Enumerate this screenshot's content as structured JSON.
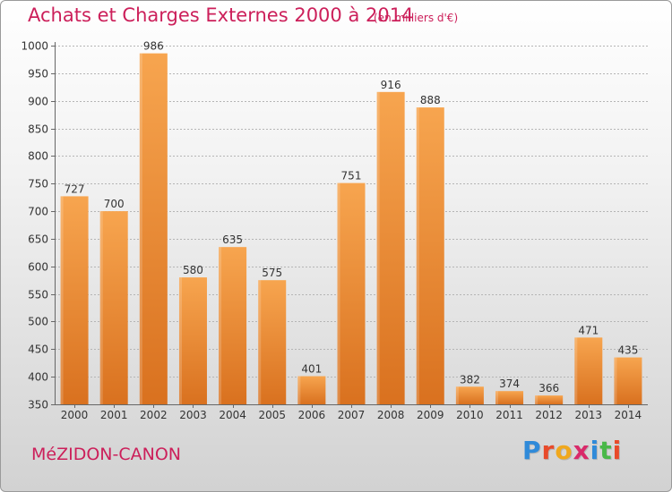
{
  "title": "Achats et Charges Externes 2000 à 2014",
  "subtitle": "(en milliers d'€)",
  "commune": "MéZIDON-CANON",
  "logo": {
    "text": "Proxiti",
    "colors": [
      "#2f8ad9",
      "#e84a2a",
      "#f0a81e",
      "#d92a6a",
      "#2f8ad9",
      "#49b848",
      "#e84a2a"
    ]
  },
  "colors": {
    "title": "#cc1f5a",
    "bar_light": "#f7a54f",
    "bar_dark": "#d9711f",
    "grid": "#b5b5b5",
    "text": "#333333"
  },
  "chart_data": {
    "type": "bar",
    "categories": [
      "2000",
      "2001",
      "2002",
      "2003",
      "2004",
      "2005",
      "2006",
      "2007",
      "2008",
      "2009",
      "2010",
      "2011",
      "2012",
      "2013",
      "2014"
    ],
    "values": [
      727,
      700,
      986,
      580,
      635,
      575,
      401,
      751,
      916,
      888,
      382,
      374,
      366,
      471,
      435
    ],
    "ylim": [
      350,
      1000
    ],
    "yticks": [
      350,
      400,
      450,
      500,
      550,
      600,
      650,
      700,
      750,
      800,
      850,
      900,
      950,
      1000
    ],
    "grid": true,
    "show_value_labels": true
  }
}
